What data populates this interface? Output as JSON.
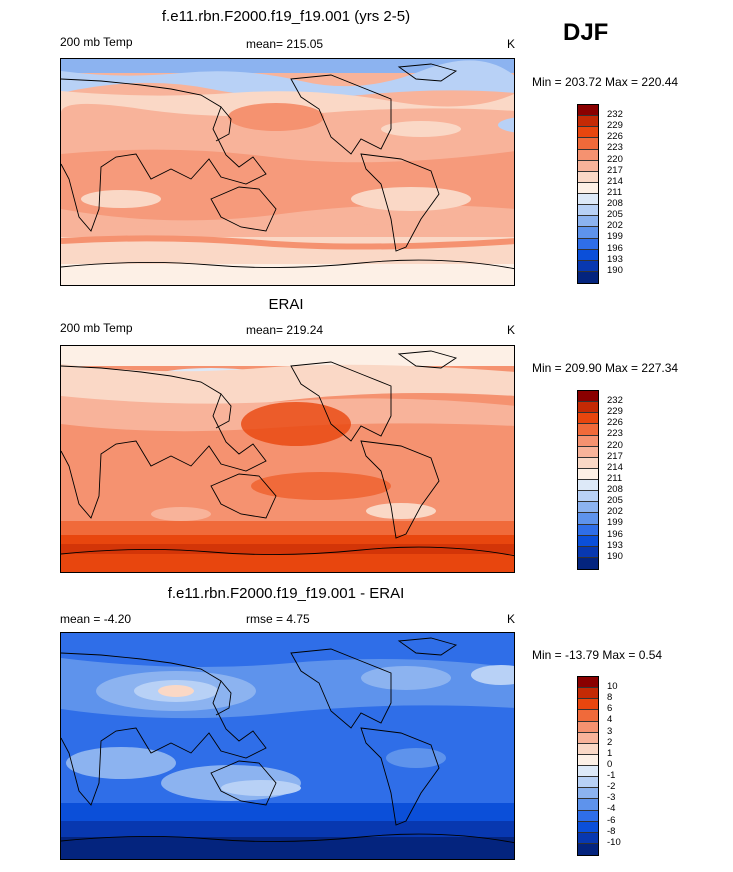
{
  "season": "DJF",
  "panels": [
    {
      "title": "f.e11.rbn.F2000.f19_f19.001 (yrs 2-5)",
      "left_label": "200 mb Temp",
      "center_label": "mean= 215.05",
      "units": "K",
      "minmax": "Min = 203.72 Max = 220.44",
      "field": "model",
      "colorbar": {
        "labels": [
          "232",
          "229",
          "226",
          "223",
          "220",
          "217",
          "214",
          "211",
          "208",
          "205",
          "202",
          "199",
          "196",
          "193",
          "190"
        ],
        "colors": [
          "#8a0000",
          "#c42a05",
          "#e8460e",
          "#f06a3a",
          "#f59270",
          "#f8b39a",
          "#fad8c6",
          "#fdf0e6",
          "#dde9f8",
          "#b8d1f6",
          "#8cb3f0",
          "#5e93ec",
          "#2f6ee8",
          "#0b4fd9",
          "#0838b0",
          "#04247e"
        ]
      }
    },
    {
      "title": "ERAI",
      "left_label": "200 mb Temp",
      "center_label": "mean= 219.24",
      "units": "K",
      "minmax": "Min = 209.90 Max = 227.34",
      "field": "erai",
      "colorbar": {
        "labels": [
          "232",
          "229",
          "226",
          "223",
          "220",
          "217",
          "214",
          "211",
          "208",
          "205",
          "202",
          "199",
          "196",
          "193",
          "190"
        ],
        "colors": [
          "#8a0000",
          "#c42a05",
          "#e8460e",
          "#f06a3a",
          "#f59270",
          "#f8b39a",
          "#fad8c6",
          "#fdf0e6",
          "#dde9f8",
          "#b8d1f6",
          "#8cb3f0",
          "#5e93ec",
          "#2f6ee8",
          "#0b4fd9",
          "#0838b0",
          "#04247e"
        ]
      }
    },
    {
      "title": "f.e11.rbn.F2000.f19_f19.001 - ERAI",
      "left_label": "mean =  -4.20",
      "center_label": "rmse =   4.75",
      "units": "K",
      "minmax": "Min = -13.79 Max =   0.54",
      "field": "diff",
      "colorbar": {
        "labels": [
          "10",
          "8",
          "6",
          "4",
          "3",
          "2",
          "1",
          "0",
          "-1",
          "-2",
          "-3",
          "-4",
          "-6",
          "-8",
          "-10"
        ],
        "colors": [
          "#8a0000",
          "#c42a05",
          "#e8460e",
          "#f06a3a",
          "#f59270",
          "#f8b39a",
          "#fad8c6",
          "#fdf0e6",
          "#dde9f8",
          "#b8d1f6",
          "#8cb3f0",
          "#5e93ec",
          "#2f6ee8",
          "#0b4fd9",
          "#0838b0",
          "#04247e"
        ]
      }
    }
  ]
}
